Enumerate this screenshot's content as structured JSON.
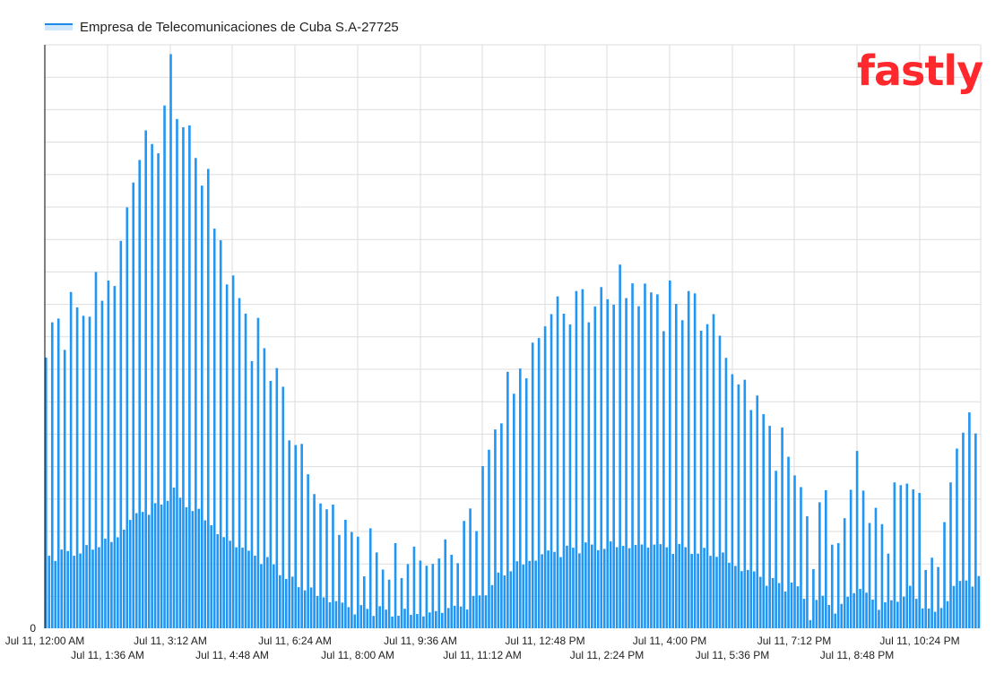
{
  "legend": {
    "label": "Empresa de Telecomunicaciones de Cuba S.A-27725"
  },
  "logo": {
    "text": "fastly"
  },
  "colors": {
    "series": "#1e88e5",
    "fill": "#2196f3",
    "grid": "#dddddd",
    "axis": "#000000",
    "logo": "#ff282d"
  },
  "chart_data": {
    "type": "bar",
    "series": [
      {
        "name": "Empresa de Telecomunicaciones de Cuba S.A-27725"
      }
    ],
    "y_tick_labels": [
      "0"
    ],
    "x_tick_labels": [
      "Jul 11, 12:00 AM",
      "Jul 11, 1:36 AM",
      "Jul 11, 3:12 AM",
      "Jul 11, 4:48 AM",
      "Jul 11, 6:24 AM",
      "Jul 11, 8:00 AM",
      "Jul 11, 9:36 AM",
      "Jul 11, 11:12 AM",
      "Jul 11, 12:48 PM",
      "Jul 11, 2:24 PM",
      "Jul 11, 4:00 PM",
      "Jul 11, 5:36 PM",
      "Jul 11, 7:12 PM",
      "Jul 11, 8:48 PM",
      "Jul 11, 10:24 PM"
    ],
    "grid": true,
    "legend_position": "top-left",
    "ylim": [
      0,
      100
    ],
    "y_unit": "relative (no scale printed)",
    "profile_hours": [
      0,
      0.5,
      1,
      1.3,
      1.6,
      1.9,
      2.0,
      2.3,
      2.6,
      3.0,
      3.2,
      3.45,
      3.6,
      3.9,
      4.2,
      4.6,
      4.9,
      5.2,
      5.6,
      6.0,
      6.4,
      6.8,
      7.3,
      7.7,
      8.3,
      8.9,
      9.6,
      10.1,
      10.6,
      11.2,
      11.5,
      12.0,
      12.5,
      12.9,
      13.4,
      13.9,
      14.4,
      15.0,
      15.5,
      16.0,
      16.4,
      16.8,
      17.3,
      17.7,
      18.2,
      18.6,
      19.0,
      19.4,
      19.6,
      19.9,
      20.2,
      20.5,
      20.8,
      21.1,
      21.5,
      21.9,
      22.2,
      22.6,
      23.0,
      23.3,
      23.6,
      23.95
    ],
    "profile_values": [
      50,
      52,
      55,
      57,
      59,
      64,
      70,
      78,
      83,
      85,
      96,
      88,
      86,
      80,
      73,
      62,
      57,
      52,
      48,
      40,
      32,
      25,
      20,
      16,
      13,
      11,
      11,
      12,
      15,
      23,
      35,
      42,
      48,
      53,
      55,
      56,
      57,
      58,
      57,
      56,
      55,
      54,
      50,
      43,
      38,
      33,
      29,
      27,
      8,
      25,
      12,
      20,
      28,
      22,
      15,
      23,
      28,
      10,
      15,
      30,
      34,
      34
    ]
  }
}
